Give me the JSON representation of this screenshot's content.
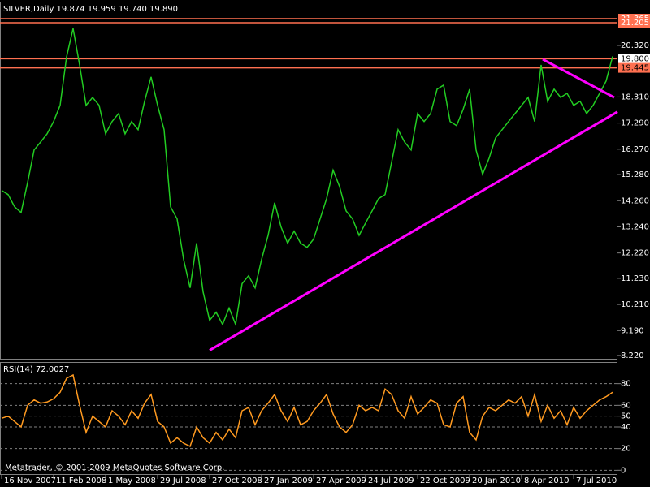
{
  "chart_data": [
    {
      "type": "line",
      "title": "SILVER,Daily  19.874 19.959 19.740 19.890",
      "series": [
        {
          "name": "SILVER",
          "color": "#22cc22",
          "values": [
            14.66,
            14.5,
            14.02,
            13.8,
            14.97,
            16.24,
            16.55,
            16.87,
            17.35,
            17.98,
            19.88,
            20.98,
            19.56,
            17.98,
            18.29,
            17.98,
            16.87,
            17.35,
            17.66,
            16.87,
            17.35,
            17.03,
            18.14,
            19.09,
            17.98,
            17.03,
            14.02,
            13.55,
            11.97,
            10.86,
            12.6,
            10.7,
            9.59,
            9.91,
            9.43,
            10.07,
            9.43,
            11.02,
            11.33,
            10.86,
            11.97,
            12.91,
            14.18,
            13.23,
            12.6,
            13.07,
            12.6,
            12.44,
            12.76,
            13.55,
            14.34,
            15.45,
            14.81,
            13.86,
            13.55,
            12.91,
            13.39,
            13.86,
            14.34,
            14.5,
            15.76,
            17.03,
            16.55,
            16.24,
            17.66,
            17.35,
            17.66,
            18.61,
            18.77,
            17.35,
            17.19,
            17.82,
            18.61,
            16.24,
            15.29,
            15.92,
            16.71,
            17.03,
            17.35,
            17.66,
            17.98,
            18.29,
            17.35,
            19.56,
            18.14,
            18.61,
            18.29,
            18.45,
            17.98,
            18.14,
            17.66,
            17.98,
            18.45,
            18.93,
            19.89
          ]
        }
      ],
      "xlim": [
        -0.25,
        94.75
      ],
      "xticks": [
        {
          "value": 0,
          "label": "16 Nov 2007"
        },
        {
          "value": 8,
          "label": "11 Feb 2008"
        },
        {
          "value": 16,
          "label": "1 May 2008"
        },
        {
          "value": 24,
          "label": "29 Jul 2008"
        },
        {
          "value": 32,
          "label": "27 Oct 2008"
        },
        {
          "value": 40,
          "label": "27 Jan 2009"
        },
        {
          "value": 48,
          "label": "27 Apr 2009"
        },
        {
          "value": 56,
          "label": "24 Jul 2009"
        },
        {
          "value": 64,
          "label": "22 Oct 2009"
        },
        {
          "value": 72,
          "label": "20 Jan 2010"
        },
        {
          "value": 80,
          "label": "8 Apr 2010"
        },
        {
          "value": 88,
          "label": "7 Jul 2010"
        }
      ],
      "ylim": [
        8.09,
        22.03
      ],
      "yticks": [
        {
          "value": 8.22,
          "label": "8.220"
        },
        {
          "value": 9.19,
          "label": "9.190"
        },
        {
          "value": 10.21,
          "label": "10.210"
        },
        {
          "value": 11.23,
          "label": "11.230"
        },
        {
          "value": 12.22,
          "label": "12.220"
        },
        {
          "value": 13.24,
          "label": "13.240"
        },
        {
          "value": 14.26,
          "label": "14.260"
        },
        {
          "value": 15.28,
          "label": "15.280"
        },
        {
          "value": 16.27,
          "label": "16.270"
        },
        {
          "value": 17.29,
          "label": "17.290"
        },
        {
          "value": 18.31,
          "label": "18.310"
        },
        {
          "value": 20.32,
          "label": "20.320"
        }
      ],
      "hlines": [
        {
          "value": 21.365,
          "label": "21.365",
          "color": "#ff7050",
          "label_bg": "#ff7050",
          "label_color": "#ffffff"
        },
        {
          "value": 21.205,
          "label": "21.205",
          "color": "#ff7050",
          "label_bg": "#ff7050",
          "label_color": "#ffffff"
        },
        {
          "value": 19.8,
          "label": "19.800",
          "color": "#ff7050",
          "label_bg": "#ffffff",
          "label_color": "#000000"
        },
        {
          "value": 19.445,
          "label": "19.445",
          "color": "#ff7050",
          "label_bg": "#ff7050",
          "label_color": "#000000"
        }
      ],
      "trendlines": [
        {
          "x": [
            32,
            94.75
          ],
          "y": [
            8.42,
            17.73
          ],
          "color": "#ff00ff"
        },
        {
          "x": [
            83.25,
            94.25
          ],
          "y": [
            19.78,
            18.29
          ],
          "color": "#ff00ff"
        }
      ],
      "grid": false
    },
    {
      "type": "line",
      "title": "RSI(14) 72.0027",
      "series": [
        {
          "name": "RSI(14)",
          "color": "#ff9a20",
          "values": [
            48,
            50,
            45,
            40,
            60,
            65,
            62,
            63,
            66,
            72,
            85,
            88,
            60,
            35,
            50,
            45,
            40,
            55,
            50,
            42,
            55,
            48,
            62,
            70,
            45,
            40,
            25,
            30,
            25,
            22,
            40,
            30,
            25,
            35,
            28,
            38,
            30,
            55,
            58,
            42,
            55,
            62,
            70,
            55,
            45,
            58,
            42,
            45,
            55,
            62,
            70,
            52,
            40,
            35,
            42,
            60,
            55,
            58,
            55,
            75,
            70,
            55,
            48,
            68,
            52,
            58,
            65,
            62,
            42,
            40,
            62,
            68,
            35,
            28,
            50,
            58,
            55,
            60,
            65,
            62,
            68,
            50,
            70,
            45,
            60,
            48,
            55,
            42,
            58,
            48,
            55,
            60,
            65,
            68,
            72
          ]
        }
      ],
      "xlim": [
        -0.25,
        94.75
      ],
      "ylim": [
        -3.5,
        100
      ],
      "yticks": [
        0,
        20,
        40,
        50,
        60,
        80
      ],
      "grid": true
    }
  ],
  "footer": "Metatrader, © 2001-2009 MetaQuotes Software Corp."
}
